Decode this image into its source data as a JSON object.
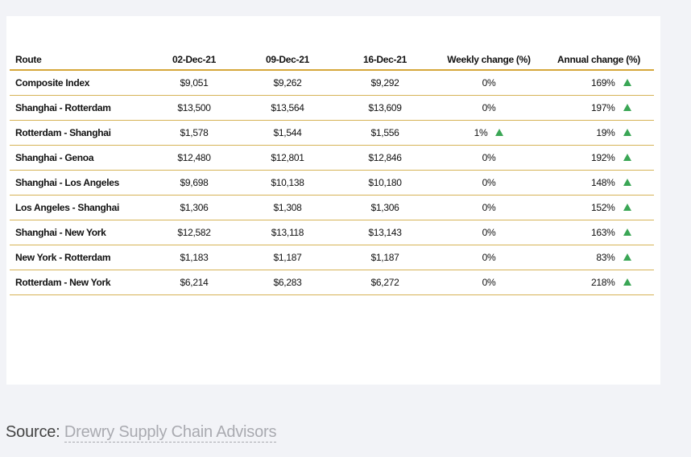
{
  "chart_data": {
    "type": "table",
    "columns": [
      "Route",
      "02-Dec-21",
      "09-Dec-21",
      "16-Dec-21",
      "Weekly change (%)",
      "Annual change (%)"
    ],
    "rows": [
      {
        "route": "Composite Index",
        "d1": "$9,051",
        "d2": "$9,262",
        "d3": "$9,292",
        "weekly": "0%",
        "weekly_up": false,
        "annual": "169%",
        "annual_up": true
      },
      {
        "route": "Shanghai - Rotterdam",
        "d1": "$13,500",
        "d2": "$13,564",
        "d3": "$13,609",
        "weekly": "0%",
        "weekly_up": false,
        "annual": "197%",
        "annual_up": true
      },
      {
        "route": "Rotterdam - Shanghai",
        "d1": "$1,578",
        "d2": "$1,544",
        "d3": "$1,556",
        "weekly": "1%",
        "weekly_up": true,
        "annual": "19%",
        "annual_up": true
      },
      {
        "route": "Shanghai - Genoa",
        "d1": "$12,480",
        "d2": "$12,801",
        "d3": "$12,846",
        "weekly": "0%",
        "weekly_up": false,
        "annual": "192%",
        "annual_up": true
      },
      {
        "route": "Shanghai - Los Angeles",
        "d1": "$9,698",
        "d2": "$10,138",
        "d3": "$10,180",
        "weekly": "0%",
        "weekly_up": false,
        "annual": "148%",
        "annual_up": true
      },
      {
        "route": "Los Angeles - Shanghai",
        "d1": "$1,306",
        "d2": "$1,308",
        "d3": "$1,306",
        "weekly": "0%",
        "weekly_up": false,
        "annual": "152%",
        "annual_up": true
      },
      {
        "route": "Shanghai - New York",
        "d1": "$12,582",
        "d2": "$13,118",
        "d3": "$13,143",
        "weekly": "0%",
        "weekly_up": false,
        "annual": "163%",
        "annual_up": true
      },
      {
        "route": "New York - Rotterdam",
        "d1": "$1,183",
        "d2": "$1,187",
        "d3": "$1,187",
        "weekly": "0%",
        "weekly_up": false,
        "annual": "83%",
        "annual_up": true
      },
      {
        "route": "Rotterdam - New York",
        "d1": "$6,214",
        "d2": "$6,283",
        "d3": "$6,272",
        "weekly": "0%",
        "weekly_up": false,
        "annual": "218%",
        "annual_up": true
      }
    ],
    "up_arrow_color": "#3aa655",
    "rule_color": "#d6b356"
  },
  "source": {
    "label": "Source:",
    "link_text": "Drewry Supply Chain Advisors"
  }
}
